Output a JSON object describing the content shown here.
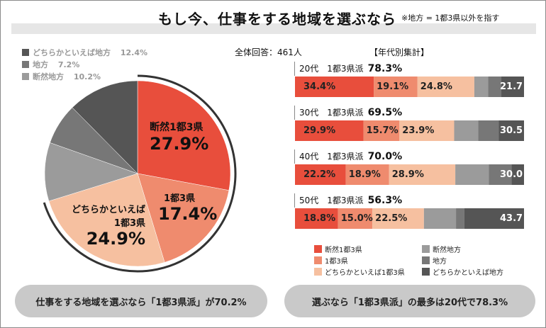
{
  "header": {
    "title": "もし今、仕事をする地域を選ぶなら",
    "note": "※地方 = 1都3県以外を指す"
  },
  "colors": {
    "strong_metro": "#e84e3c",
    "metro": "#ef8b6e",
    "lean_metro": "#f6c0a0",
    "strong_local": "#9b9b9b",
    "local": "#777777",
    "lean_local": "#555555"
  },
  "chart_data": [
    {
      "type": "pie",
      "title": "全体",
      "start": "top",
      "direction": "clockwise",
      "slices": [
        {
          "label": "断然1都3県",
          "value": 27.9,
          "display": "27.9%",
          "color": "#e84e3c"
        },
        {
          "label": "1都3県",
          "value": 17.4,
          "display": "17.4%",
          "color": "#ef8b6e"
        },
        {
          "label": "どちらかといえば1都3県",
          "value": 24.9,
          "display": "24.9%",
          "color": "#f6c0a0"
        },
        {
          "label": "断然地方",
          "value": 10.2,
          "display": "10.2%",
          "color": "#9b9b9b"
        },
        {
          "label": "地方",
          "value": 7.2,
          "display": "7.2%",
          "color": "#777777"
        },
        {
          "label": "どちらかといえば地方",
          "value": 12.4,
          "display": "12.4%",
          "color": "#555555"
        }
      ],
      "pie_labels": {
        "s0": "断然1都3県",
        "s1": "1都3県",
        "s2a": "どちらかといえば",
        "s2b": "1都3県"
      },
      "legend": [
        {
          "label": "どちらかといえば地方",
          "value": "12.4%",
          "color": "#555555"
        },
        {
          "label": "地方",
          "value": "7.2%",
          "color": "#777777"
        },
        {
          "label": "断然地方",
          "value": "10.2%",
          "color": "#9b9b9b"
        }
      ]
    },
    {
      "type": "bar",
      "orientation": "horizontal",
      "stacked": true,
      "title": "【年代別集計】",
      "xlim": [
        0,
        100
      ],
      "categories": [
        "20代",
        "30代",
        "40代",
        "50代"
      ],
      "metro_label": "1都3県派",
      "metro_totals": [
        "78.3%",
        "69.5%",
        "70.0%",
        "56.3%"
      ],
      "local_totals": [
        "21.7",
        "30.5",
        "30.0",
        "43.7"
      ],
      "series": [
        {
          "name": "断然1都3県",
          "color": "#e84e3c",
          "values": [
            34.4,
            29.9,
            22.2,
            18.8
          ],
          "labels": [
            "34.4%",
            "29.9%",
            "22.2%",
            "18.8%"
          ]
        },
        {
          "name": "1都3県",
          "color": "#ef8b6e",
          "values": [
            19.1,
            15.7,
            18.9,
            15.0
          ],
          "labels": [
            "19.1%",
            "15.7%",
            "18.9%",
            "15.0%"
          ]
        },
        {
          "name": "どちらかといえば1都3県",
          "color": "#f6c0a0",
          "values": [
            24.8,
            23.9,
            28.9,
            22.5
          ],
          "labels": [
            "24.8%",
            "23.9%",
            "28.9%",
            "22.5%"
          ]
        },
        {
          "name": "断然地方",
          "color": "#9b9b9b",
          "values": [
            6.0,
            10.5,
            14.6,
            14.0
          ]
        },
        {
          "name": "地方",
          "color": "#777777",
          "values": [
            5.8,
            9.0,
            10.0,
            3.6
          ]
        },
        {
          "name": "どちらかといえば地方",
          "color": "#555555",
          "values": [
            9.9,
            11.0,
            5.4,
            26.1
          ]
        }
      ]
    }
  ],
  "summary": {
    "total": "全体回答：461人"
  },
  "pills": {
    "left": "仕事をする地域を選ぶなら「1都3県派」が70.2%",
    "right": "選ぶなら「1都3県派」の最多は20代で78.3%"
  }
}
